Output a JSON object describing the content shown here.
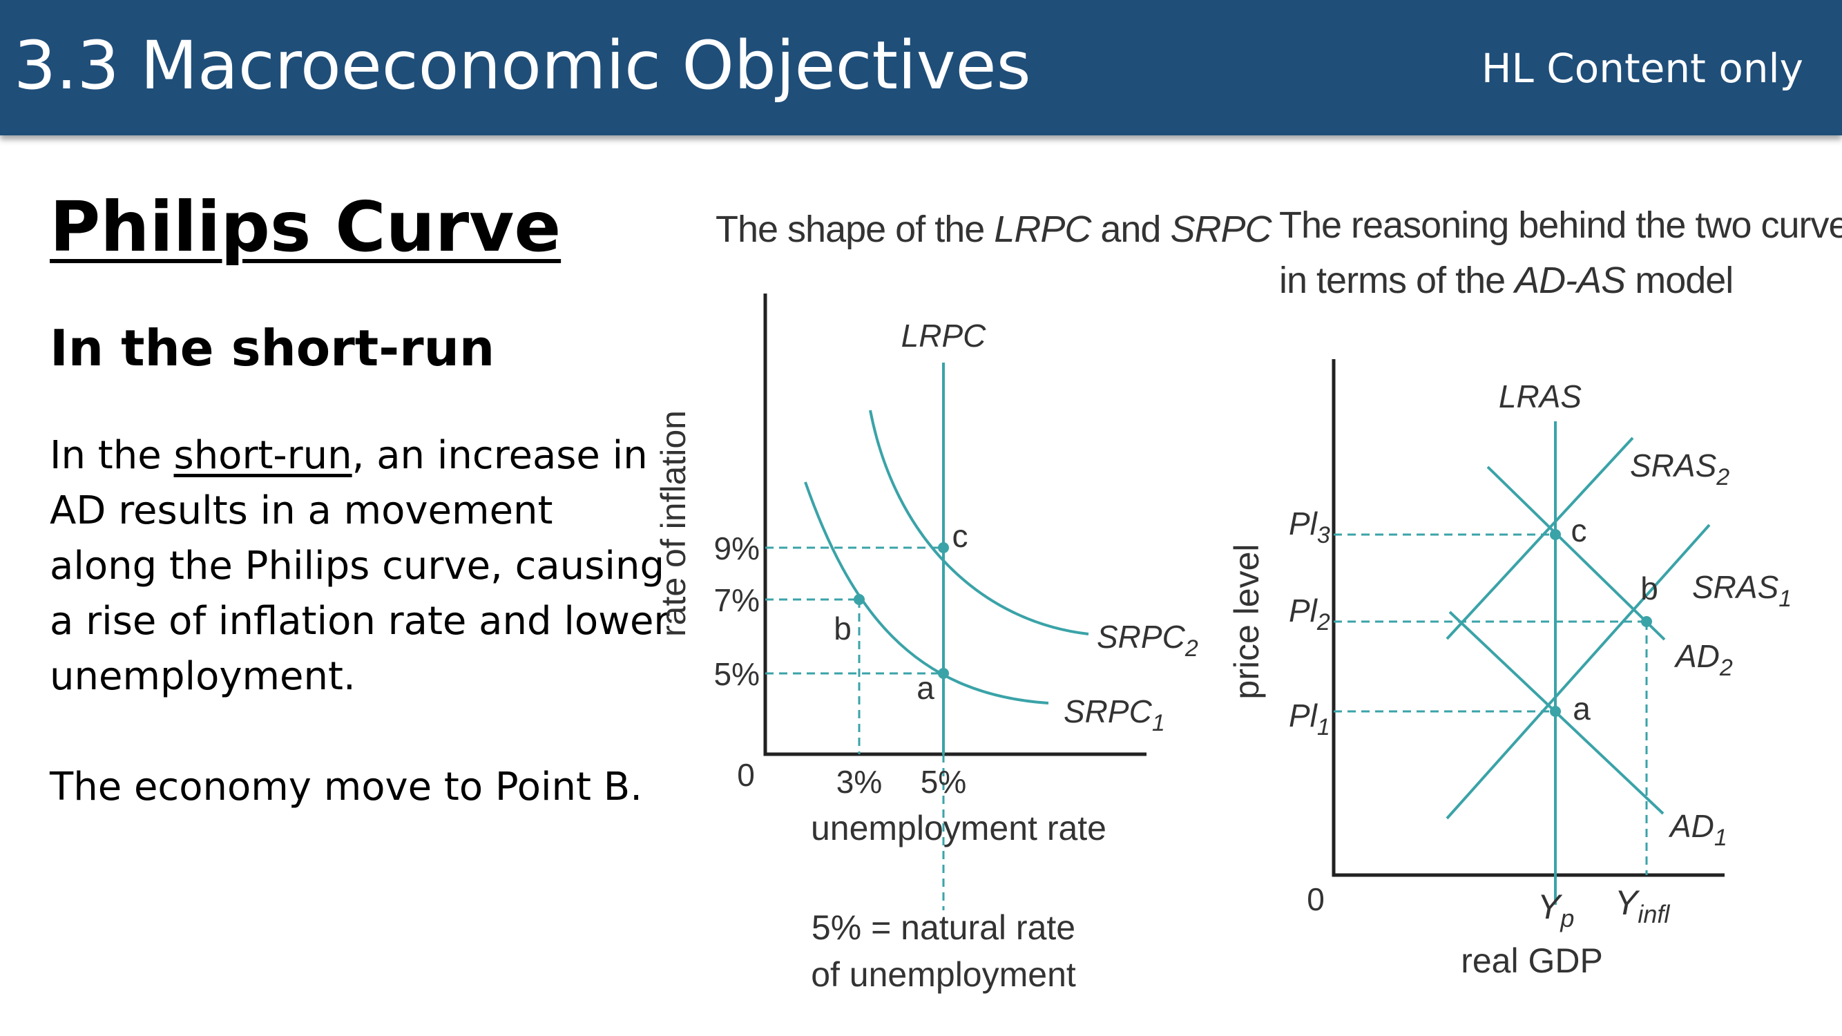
{
  "header": {
    "title": "3.3 Macroeconomic Objectives",
    "tag": "HL Content only"
  },
  "content": {
    "heading": "Philips Curve",
    "subheading": "In the short-run",
    "paragraph": {
      "lead": "In the ",
      "underlined": "short-run",
      "rest": ", an increase in AD results in a movement along the Philips curve, causing a rise of inflation rate and lower unemployment."
    },
    "closing": "The economy move to Point B."
  },
  "diagram_left": {
    "caption": {
      "prefix": "The shape of the ",
      "lrpc": "LRPC",
      "and": " and ",
      "srpc": "SRPC"
    },
    "y_axis_label": "rate of inflation",
    "x_axis_label": "unemployment rate",
    "origin": "0",
    "y_ticks": [
      "9%",
      "7%",
      "5%"
    ],
    "x_ticks": [
      "3%",
      "5%"
    ],
    "lrpc_label": "LRPC",
    "srpc1": {
      "base": "SRPC",
      "sub": "1"
    },
    "srpc2": {
      "base": "SRPC",
      "sub": "2"
    },
    "points": [
      "a",
      "b",
      "c"
    ],
    "note": [
      "5% = natural rate",
      "of unemployment"
    ]
  },
  "diagram_right": {
    "caption": [
      "The reasoning behind the two curves",
      "in terms of the ",
      "AD-AS",
      " model"
    ],
    "y_axis_label": "price level",
    "x_axis_label": "real GDP",
    "origin": "0",
    "lras_label": "LRAS",
    "sras1": {
      "base": "SRAS",
      "sub": "1"
    },
    "sras2": {
      "base": "SRAS",
      "sub": "2"
    },
    "ad1": {
      "base": "AD",
      "sub": "1"
    },
    "ad2": {
      "base": "AD",
      "sub": "2"
    },
    "pl1": {
      "base": "Pl",
      "sub": "1"
    },
    "pl2": {
      "base": "Pl",
      "sub": "2"
    },
    "pl3": {
      "base": "Pl",
      "sub": "3"
    },
    "yp": {
      "base": "Y",
      "sub": "p"
    },
    "yinfl": {
      "base": "Y",
      "sub": "infl"
    },
    "points": [
      "a",
      "b",
      "c"
    ]
  }
}
